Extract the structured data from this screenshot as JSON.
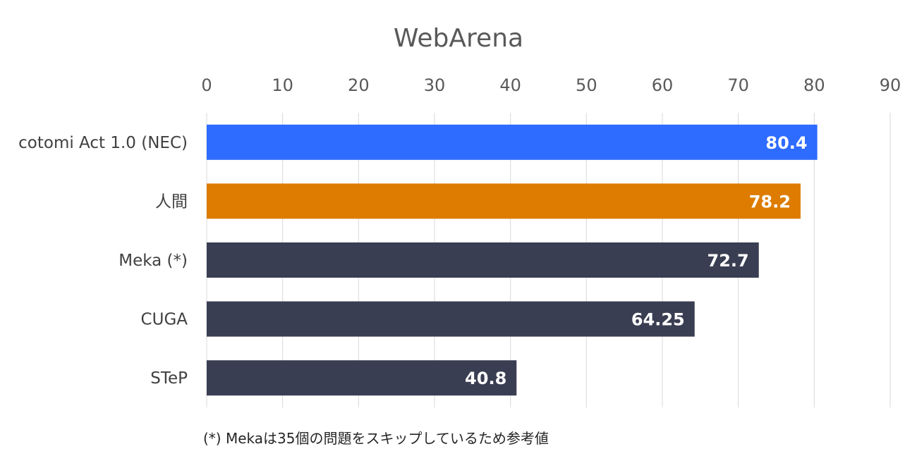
{
  "chart_data": {
    "type": "bar",
    "orientation": "horizontal",
    "title": "WebArena",
    "categories": [
      "cotomi Act 1.0 (NEC)",
      "人間",
      "Meka (*)",
      "CUGA",
      "STeP"
    ],
    "values": [
      80.4,
      78.2,
      72.7,
      64.25,
      40.8
    ],
    "data_labels": [
      "80.4",
      "78.2",
      "72.7",
      "64.25",
      "40.8"
    ],
    "colors": [
      "#2e6bff",
      "#dd7c00",
      "#3a3e52",
      "#3a3e52",
      "#3a3e52"
    ],
    "xlim": [
      0,
      90
    ],
    "x_ticks": [
      0,
      10,
      20,
      30,
      40,
      50,
      60,
      70,
      80,
      90
    ],
    "x_axis_position": "top",
    "grid": true,
    "xlabel": "",
    "ylabel": ""
  },
  "footnote": "(*) Mekaは35個の問題をスキップしているため参考値"
}
